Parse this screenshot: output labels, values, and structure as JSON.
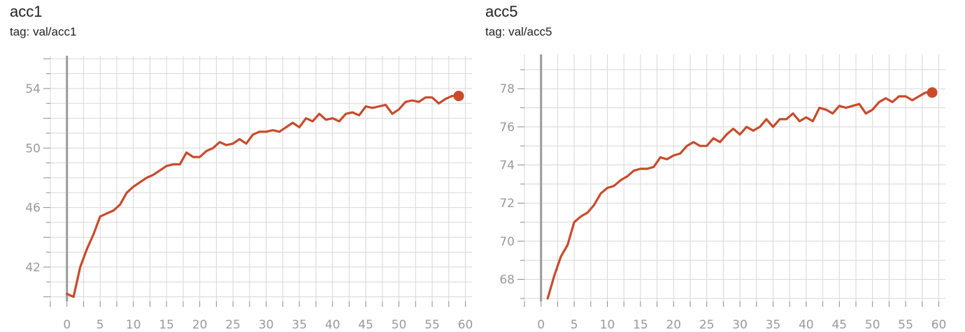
{
  "colors": {
    "series": "#c84a2a",
    "grid": "#d7d7d7",
    "tick_text": "#9a9a9a"
  },
  "chart_data": [
    {
      "type": "line",
      "title": "acc1",
      "subtitle": "tag: val/acc1",
      "xlabel": "",
      "ylabel": "",
      "xlim": [
        -2.5,
        61
      ],
      "ylim": [
        39.7,
        56.2
      ],
      "x_ticks": [
        "0",
        "5",
        "10",
        "15",
        "20",
        "25",
        "30",
        "35",
        "40",
        "45",
        "50",
        "55",
        "60"
      ],
      "y_ticks": [
        "42",
        "46",
        "50",
        "54"
      ],
      "grid": true,
      "series": [
        {
          "x": [
            0,
            1,
            2,
            3,
            4,
            5,
            6,
            7,
            8,
            9,
            10,
            11,
            12,
            13,
            14,
            15,
            16,
            17,
            18,
            19,
            20,
            21,
            22,
            23,
            24,
            25,
            26,
            27,
            28,
            29,
            30,
            31,
            32,
            33,
            34,
            35,
            36,
            37,
            38,
            39,
            40,
            41,
            42,
            43,
            44,
            45,
            46,
            47,
            48,
            49,
            50,
            51,
            52,
            53,
            54,
            55,
            56,
            57,
            58,
            59
          ],
          "y": [
            40.2,
            40.0,
            42.0,
            43.2,
            44.2,
            45.4,
            45.6,
            45.8,
            46.2,
            47.0,
            47.4,
            47.7,
            48.0,
            48.2,
            48.5,
            48.8,
            48.9,
            48.9,
            49.7,
            49.4,
            49.4,
            49.8,
            50.0,
            50.4,
            50.2,
            50.3,
            50.6,
            50.3,
            50.9,
            51.1,
            51.1,
            51.2,
            51.1,
            51.4,
            51.7,
            51.4,
            52.0,
            51.8,
            52.3,
            51.9,
            52.0,
            51.8,
            52.3,
            52.4,
            52.2,
            52.8,
            52.7,
            52.8,
            52.9,
            52.3,
            52.6,
            53.1,
            53.2,
            53.1,
            53.4,
            53.4,
            53.0,
            53.3,
            53.5,
            53.5
          ]
        }
      ]
    },
    {
      "type": "line",
      "title": "acc5",
      "subtitle": "tag: val/acc5",
      "xlabel": "",
      "ylabel": "",
      "xlim": [
        -2.5,
        61
      ],
      "ylim": [
        66.85,
        79.8
      ],
      "x_ticks": [
        "0",
        "5",
        "10",
        "15",
        "20",
        "25",
        "30",
        "35",
        "40",
        "45",
        "50",
        "55",
        "60"
      ],
      "y_ticks": [
        "68",
        "70",
        "72",
        "74",
        "76",
        "78"
      ],
      "grid": true,
      "series": [
        {
          "x": [
            1,
            2,
            3,
            4,
            5,
            6,
            7,
            8,
            9,
            10,
            11,
            12,
            13,
            14,
            15,
            16,
            17,
            18,
            19,
            20,
            21,
            22,
            23,
            24,
            25,
            26,
            27,
            28,
            29,
            30,
            31,
            32,
            33,
            34,
            35,
            36,
            37,
            38,
            39,
            40,
            41,
            42,
            43,
            44,
            45,
            46,
            47,
            48,
            49,
            50,
            51,
            52,
            53,
            54,
            55,
            56,
            57,
            58,
            59
          ],
          "y": [
            67.0,
            68.2,
            69.2,
            69.8,
            71.0,
            71.3,
            71.5,
            71.9,
            72.5,
            72.8,
            72.9,
            73.2,
            73.4,
            73.7,
            73.8,
            73.8,
            73.9,
            74.4,
            74.3,
            74.5,
            74.6,
            75.0,
            75.2,
            75.0,
            75.0,
            75.4,
            75.2,
            75.6,
            75.9,
            75.6,
            76.0,
            75.8,
            76.0,
            76.4,
            76.0,
            76.4,
            76.4,
            76.7,
            76.3,
            76.5,
            76.3,
            77.0,
            76.9,
            76.7,
            77.1,
            77.0,
            77.1,
            77.2,
            76.7,
            76.9,
            77.3,
            77.5,
            77.3,
            77.6,
            77.6,
            77.4,
            77.6,
            77.8,
            77.8
          ]
        }
      ]
    }
  ]
}
